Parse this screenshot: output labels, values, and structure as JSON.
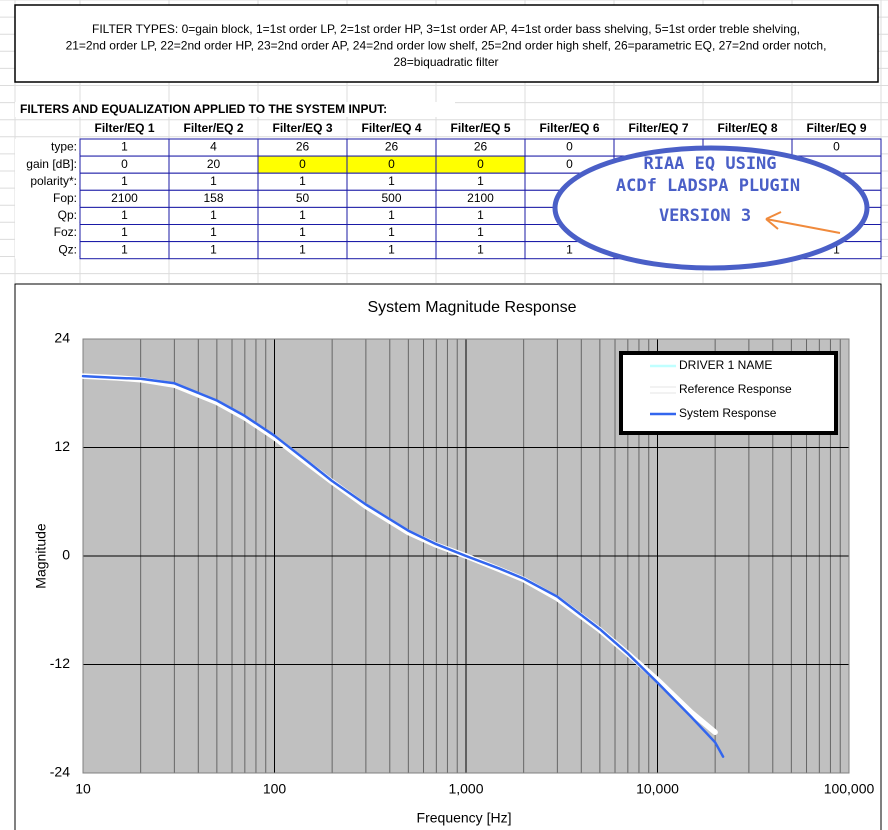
{
  "filter_types": [
    "FILTER TYPES:  0=gain block, 1=1st order LP, 2=1st order HP, 3=1st order AP, 4=1st order bass shelving, 5=1st order treble shelving,",
    "21=2nd order LP, 22=2nd order HP, 23=2nd order AP, 24=2nd order low shelf, 25=2nd order high shelf, 26=parametric EQ, 27=2nd order notch,",
    "28=biquadratic filter"
  ],
  "table": {
    "title": "FILTERS AND EQUALIZATION APPLIED TO THE SYSTEM INPUT:",
    "columns": [
      "Filter/EQ 1",
      "Filter/EQ 2",
      "Filter/EQ 3",
      "Filter/EQ 4",
      "Filter/EQ 5",
      "Filter/EQ 6",
      "Filter/EQ 7",
      "Filter/EQ 8",
      "Filter/EQ 9"
    ],
    "rows": [
      {
        "label": "type:",
        "cells": [
          "1",
          "4",
          "26",
          "26",
          "26",
          "0",
          null,
          null,
          "0"
        ]
      },
      {
        "label": "gain [dB]:",
        "cells": [
          "0",
          "20",
          "0",
          "0",
          "0",
          "0",
          null,
          null,
          null
        ]
      },
      {
        "label": "polarity*:",
        "cells": [
          "1",
          "1",
          "1",
          "1",
          "1",
          null,
          null,
          null,
          null
        ]
      },
      {
        "label": "Fop:",
        "cells": [
          "2100",
          "158",
          "50",
          "500",
          "2100",
          null,
          null,
          null,
          null
        ]
      },
      {
        "label": "Qp:",
        "cells": [
          "1",
          "1",
          "1",
          "1",
          "1",
          null,
          null,
          null,
          null
        ]
      },
      {
        "label": "Foz:",
        "cells": [
          "1",
          "1",
          "1",
          "1",
          "1",
          null,
          null,
          null,
          null
        ]
      },
      {
        "label": "Qz:",
        "cells": [
          "1",
          "1",
          "1",
          "1",
          "1",
          "1",
          null,
          null,
          "1"
        ]
      }
    ]
  },
  "annotation": {
    "lines": [
      "RIAA EQ USING",
      "ACDf LADSPA PLUGIN",
      "VERSION 3"
    ],
    "color": "#4a5fc7",
    "arrow_color": "#f08a3c"
  },
  "chart_data": {
    "type": "line",
    "title": "System Magnitude Response",
    "x_label": "Frequency [Hz]",
    "y_label": "Magnitude",
    "x_scale": "log",
    "grid": true,
    "minor_grid": true,
    "legend": "upper right",
    "background": "#c0c0c0",
    "xlim": [
      10,
      100000
    ],
    "xticks": [
      10,
      100,
      {
        "value": 1000,
        "label": "1,000"
      },
      {
        "value": 10000,
        "label": "10,000"
      },
      {
        "value": 100000,
        "label": "100,000"
      }
    ],
    "ylim": [
      -24,
      24
    ],
    "yticks": [
      -24,
      -12,
      0,
      12,
      24
    ],
    "x": [
      10,
      15,
      20,
      30,
      50,
      70,
      100,
      150,
      200,
      300,
      500,
      700,
      1000,
      1500,
      2000,
      3000,
      5000,
      7000,
      10000,
      15000,
      20000,
      22000
    ],
    "series": [
      {
        "name": "DRIVER 1 NAME",
        "color": "#c0ffff",
        "values": [
          null,
          null,
          null,
          null,
          null,
          null,
          null,
          null,
          null,
          null,
          null,
          null,
          null,
          null,
          null,
          null,
          null,
          null,
          null,
          null,
          null,
          null
        ]
      },
      {
        "name": "Reference Response",
        "color": "#ffffff",
        "values": [
          19.9,
          19.7,
          19.5,
          18.9,
          17,
          15.3,
          13.1,
          10.2,
          8.2,
          5.5,
          2.6,
          1.2,
          0,
          -1.5,
          -2.6,
          -4.7,
          -8.2,
          -10.8,
          -13.7,
          -17.3,
          -19.5,
          null
        ]
      },
      {
        "name": "System Response",
        "color": "#3366ee",
        "values": [
          19.9,
          19.7,
          19.6,
          19.1,
          17.2,
          15.5,
          13.3,
          10.4,
          8.3,
          5.7,
          2.8,
          1.3,
          0,
          -1.4,
          -2.5,
          -4.5,
          -8.1,
          -10.8,
          -14.0,
          -17.8,
          -20.6,
          -22.2
        ]
      }
    ]
  }
}
